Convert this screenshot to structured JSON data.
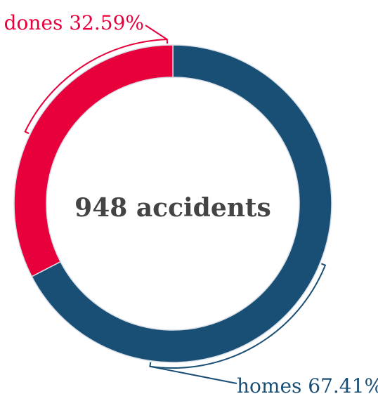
{
  "chart_data": {
    "type": "pie",
    "variant": "donut",
    "center_label": "948 accidents",
    "total": 948,
    "slices": [
      {
        "name": "homes",
        "percent": 67.41,
        "label": "homes 67.41%",
        "color": "#1a4f75"
      },
      {
        "name": "dones",
        "percent": 32.59,
        "label": "dones 32.59%",
        "color": "#e8003d"
      }
    ],
    "start_angle": "12 o'clock",
    "direction": "clockwise",
    "stroke_color": "#d8e0e8",
    "background": "#ffffff"
  }
}
